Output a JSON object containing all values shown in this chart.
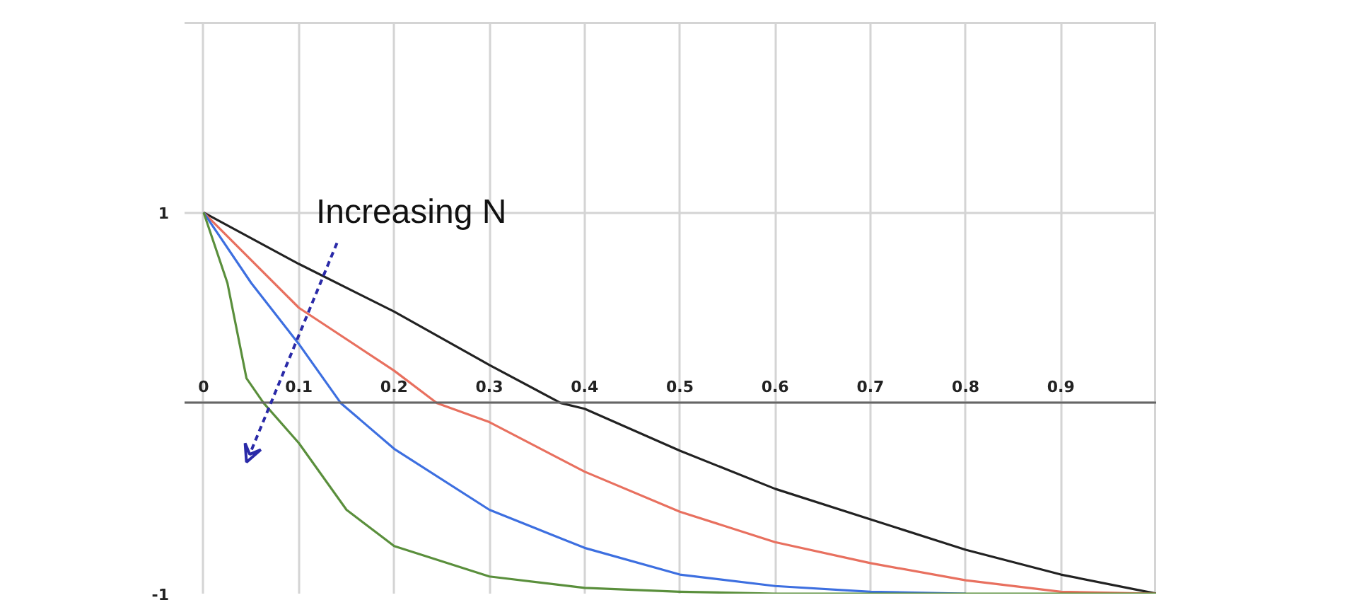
{
  "chart_data": {
    "type": "line",
    "series": [
      {
        "color": "#222222",
        "x": [
          0,
          0.1,
          0.2,
          0.3,
          0.375,
          0.4,
          0.5,
          0.6,
          0.7,
          0.8,
          0.9,
          1
        ],
        "values": [
          1,
          0.73,
          0.48,
          0.2,
          0,
          -0.03,
          -0.25,
          -0.45,
          -0.61,
          -0.77,
          -0.9,
          -1
        ]
      },
      {
        "color": "#e8705f",
        "x": [
          0,
          0.1,
          0.2,
          0.245,
          0.3,
          0.4,
          0.5,
          0.6,
          0.7,
          0.8,
          0.9,
          1
        ],
        "values": [
          1,
          0.5,
          0.17,
          0,
          -0.1,
          -0.36,
          -0.57,
          -0.73,
          -0.84,
          -0.93,
          -0.99,
          -1
        ]
      },
      {
        "color": "#3d6fe0",
        "x": [
          0,
          0.05,
          0.1,
          0.144,
          0.2,
          0.3,
          0.4,
          0.5,
          0.6,
          0.7,
          0.8
        ],
        "values": [
          1,
          0.63,
          0.31,
          0,
          -0.24,
          -0.56,
          -0.76,
          -0.9,
          -0.96,
          -0.99,
          -1
        ]
      },
      {
        "color": "#5a8f3c",
        "x": [
          0,
          0.025,
          0.045,
          0.063,
          0.1,
          0.15,
          0.2,
          0.3,
          0.4,
          0.5,
          0.6,
          0.8,
          1
        ],
        "values": [
          1,
          0.63,
          0.13,
          0,
          -0.21,
          -0.56,
          -0.75,
          -0.91,
          -0.97,
          -0.99,
          -1,
          -1,
          -1
        ]
      }
    ],
    "xlim": [
      -0.02,
      1
    ],
    "xticks": [
      0,
      0.1,
      0.2,
      0.3,
      0.4,
      0.5,
      0.6,
      0.7,
      0.8,
      0.9,
      {
        "value": 1,
        "label": null
      }
    ],
    "ylim": [
      -1,
      2
    ],
    "yticks": [
      -1,
      {
        "value": 0,
        "label": null
      },
      1,
      {
        "value": 2,
        "label": null
      }
    ],
    "annotations": [
      "Increasing N"
    ],
    "grid": true,
    "marker": "none",
    "line_style": "solid"
  }
}
